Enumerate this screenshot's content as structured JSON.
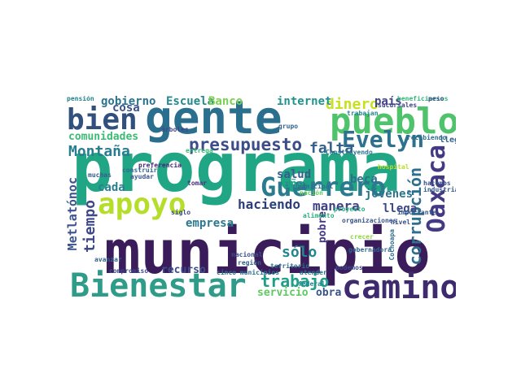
{
  "cloud": {
    "words": [
      {
        "text": "municipio",
        "color": "#3b1c5a"
      },
      {
        "text": "programa",
        "color": "#21a685"
      },
      {
        "text": "gente",
        "color": "#2b6f8e"
      },
      {
        "text": "pueblo",
        "color": "#4ec36b"
      },
      {
        "text": "Bienestar",
        "color": "#2f9c8a"
      },
      {
        "text": "camino",
        "color": "#3e2a6e"
      },
      {
        "text": "bien",
        "color": "#31507e"
      },
      {
        "text": "apoyo",
        "color": "#b5de2b"
      },
      {
        "text": "Guerrero",
        "color": "#2a7b8e"
      },
      {
        "text": "Oaxaca",
        "color": "#443983"
      },
      {
        "text": "Evelyn",
        "color": "#2c728e"
      },
      {
        "text": "presupuesto",
        "color": "#3d4d8a"
      },
      {
        "text": "dinero",
        "color": "#c8e020"
      },
      {
        "text": "falta",
        "color": "#355f8d"
      },
      {
        "text": "trabajo",
        "color": "#1f9e89"
      },
      {
        "text": "Montaña",
        "color": "#287d8e"
      },
      {
        "text": "corrupción",
        "color": "#2e6e8e"
      },
      {
        "text": "tiempo",
        "color": "#3f4788"
      },
      {
        "text": "haciendo",
        "color": "#2d3f7a"
      },
      {
        "text": "sólo",
        "color": "#24868e"
      },
      {
        "text": "comunidades",
        "color": "#3bbb75"
      },
      {
        "text": "Metlatónoc",
        "color": "#3a548c"
      },
      {
        "text": "manera",
        "color": "#404387"
      },
      {
        "text": "gobierno",
        "color": "#2a768e"
      },
      {
        "text": "Escuela",
        "color": "#23898e"
      },
      {
        "text": "Banco",
        "color": "#7ad151"
      },
      {
        "text": "internet",
        "color": "#20928c"
      },
      {
        "text": "país",
        "color": "#414487"
      },
      {
        "text": "cosa",
        "color": "#3b528b"
      },
      {
        "text": "cada",
        "color": "#27808e"
      },
      {
        "text": "empresa",
        "color": "#2a788e"
      },
      {
        "text": "salud",
        "color": "#355e8d"
      },
      {
        "text": "años",
        "color": "#1fa187"
      },
      {
        "text": "beca",
        "color": "#2d708e"
      },
      {
        "text": "llega",
        "color": "#3e4989"
      },
      {
        "text": "jóvenes",
        "color": "#2c738e"
      },
      {
        "text": "pobre",
        "color": "#453781"
      },
      {
        "text": "obra",
        "color": "#3a538b"
      },
      {
        "text": "servicio",
        "color": "#5ec962"
      },
      {
        "text": "recurso",
        "color": "#3d4e8a"
      },
      {
        "text": "llegan",
        "color": "#33628d"
      },
      {
        "text": "beneficiarios",
        "color": "#35b779"
      },
      {
        "text": "pensión",
        "color": "#26828e"
      },
      {
        "text": "árboles",
        "color": "#404688"
      },
      {
        "text": "construir",
        "color": "#31668e"
      },
      {
        "text": "municipal",
        "color": "#2f6c8e"
      },
      {
        "text": "nacional",
        "color": "#3c508b"
      },
      {
        "text": "región",
        "color": "#34618d"
      },
      {
        "text": "territorio",
        "color": "#2e6f8e"
      },
      {
        "text": "federal",
        "color": "#24878e"
      },
      {
        "text": "nación",
        "color": "#63cb5f"
      },
      {
        "text": "podemos",
        "color": "#3f4889"
      },
      {
        "text": "atender",
        "color": "#2b758e"
      },
      {
        "text": "gobernadora",
        "color": "#32648e"
      },
      {
        "text": "cinco municipios",
        "color": "#2d718e"
      },
      {
        "text": "ayudar",
        "color": "#39558c"
      },
      {
        "text": "siglo",
        "color": "#3e4a89"
      },
      {
        "text": "muchas",
        "color": "#355f8d"
      },
      {
        "text": "preferencia",
        "color": "#482878"
      },
      {
        "text": "Cochoapa",
        "color": "#2e6d8e"
      },
      {
        "text": "importante",
        "color": "#37598c"
      },
      {
        "text": "nivel",
        "color": "#3b518b"
      },
      {
        "text": "industria",
        "color": "#38598c"
      },
      {
        "text": "sucursales",
        "color": "#404588"
      },
      {
        "text": "peso",
        "color": "#3c4f8a"
      },
      {
        "text": "hacemos",
        "color": "#3b518b"
      },
      {
        "text": "Construyendo",
        "color": "#2a778e"
      },
      {
        "text": "recibiendo",
        "color": "#2f6b8e"
      },
      {
        "text": "trabajan",
        "color": "#25858e"
      },
      {
        "text": "hospital",
        "color": "#b8de29"
      },
      {
        "text": "grupo",
        "color": "#32658e"
      },
      {
        "text": "entrega",
        "color": "#38b977"
      },
      {
        "text": "alimento",
        "color": "#29af7f"
      },
      {
        "text": "crecer",
        "color": "#8fd744"
      },
      {
        "text": "compromiso",
        "color": "#3e4c8a"
      },
      {
        "text": "avanzar",
        "color": "#33638d"
      },
      {
        "text": "tomar",
        "color": "#46327e"
      },
      {
        "text": "proyecto",
        "color": "#25ac82"
      },
      {
        "text": "organizaciones",
        "color": "#39568c"
      }
    ]
  }
}
